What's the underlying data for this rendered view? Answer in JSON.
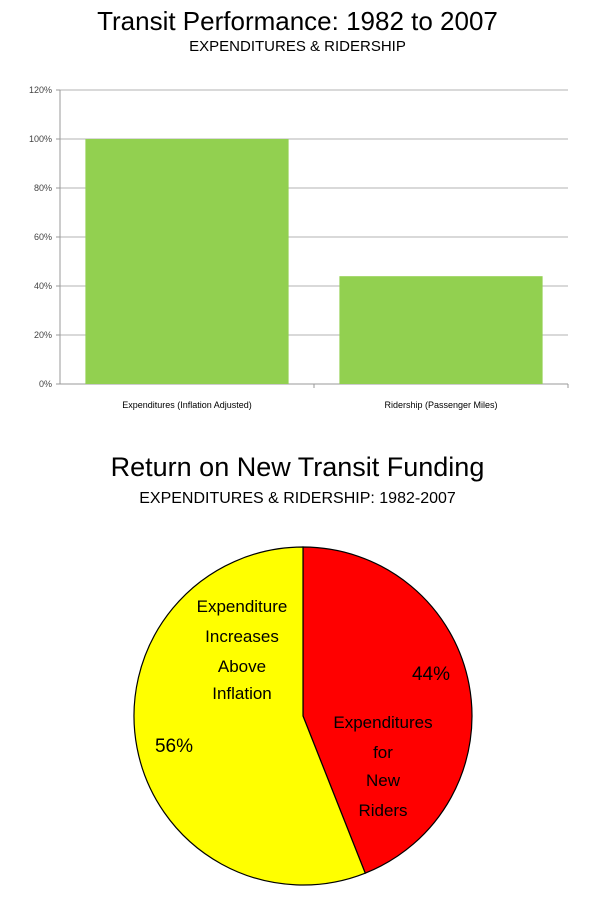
{
  "charts": [
    {
      "type": "bar",
      "title": "Transit Performance: 1982 to 2007",
      "subtitle": "EXPENDITURES & RIDERSHIP",
      "categories": [
        "Expenditures (Inflation Adjusted)",
        "Ridership (Passenger Miles)"
      ],
      "values": [
        100,
        44
      ],
      "unit": "%",
      "ylim": [
        0,
        120
      ],
      "yticks": [
        0,
        20,
        40,
        60,
        80,
        100,
        120
      ],
      "ytick_labels": [
        "0%",
        "20%",
        "40%",
        "60%",
        "80%",
        "100%",
        "120%"
      ],
      "bar_color": "#92d050",
      "grid": true,
      "legend": "none"
    },
    {
      "type": "pie",
      "title": "Return on New Transit Funding",
      "subtitle": "EXPENDITURES & RIDERSHIP: 1982-2007",
      "slices": [
        {
          "value": 44,
          "value_label": "44%",
          "label_lines": [
            "Expenditures",
            "for",
            "New",
            "Riders"
          ],
          "color": "#ff0000"
        },
        {
          "value": 56,
          "value_label": "56%",
          "label_lines": [
            "Expenditure",
            "Increases",
            "Above",
            "Inflation"
          ],
          "color": "#ffff00"
        }
      ],
      "legend": "none"
    }
  ],
  "chart_data": [
    {
      "type": "bar",
      "title": "Transit Performance: 1982 to 2007",
      "subtitle": "EXPENDITURES & RIDERSHIP",
      "categories": [
        "Expenditures (Inflation Adjusted)",
        "Ridership (Passenger Miles)"
      ],
      "values": [
        100,
        44
      ],
      "ylim": [
        0,
        120
      ],
      "xlabel": "",
      "ylabel": "",
      "grid": true
    },
    {
      "type": "pie",
      "title": "Return on New Transit Funding",
      "subtitle": "EXPENDITURES & RIDERSHIP: 1982-2007",
      "labels": [
        "Expenditures for New Riders",
        "Expenditure Increases Above Inflation"
      ],
      "values": [
        44,
        56
      ]
    }
  ]
}
